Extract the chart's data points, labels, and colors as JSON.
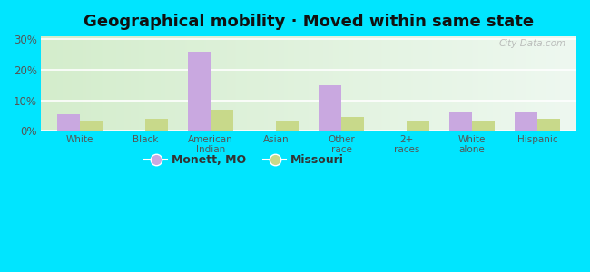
{
  "title": "Geographical mobility · Moved within same state",
  "categories": [
    "White",
    "Black",
    "American\nIndian",
    "Asian",
    "Other\nrace",
    "2+\nraces",
    "White\nalone",
    "Hispanic"
  ],
  "monett_values": [
    5.5,
    0.0,
    26.0,
    0.0,
    15.0,
    0.0,
    6.0,
    6.5
  ],
  "missouri_values": [
    3.5,
    4.0,
    7.0,
    3.0,
    4.5,
    3.5,
    3.5,
    4.0
  ],
  "monett_color": "#c9a8e0",
  "missouri_color": "#c8d98a",
  "bg_color_left": "#d8eecc",
  "bg_color_right": "#eef8f0",
  "outer_bg": "#00e5ff",
  "yticks": [
    0,
    10,
    20,
    30
  ],
  "ylim": [
    0,
    31
  ],
  "bar_width": 0.35,
  "legend_monett": "Monett, MO",
  "legend_missouri": "Missouri",
  "title_fontsize": 13,
  "title_color": "#111111",
  "watermark": "City-Data.com",
  "tick_label_color": "#555555",
  "grid_color": "#ffffff",
  "xlim_left": -0.6,
  "xlim_right": 7.6
}
